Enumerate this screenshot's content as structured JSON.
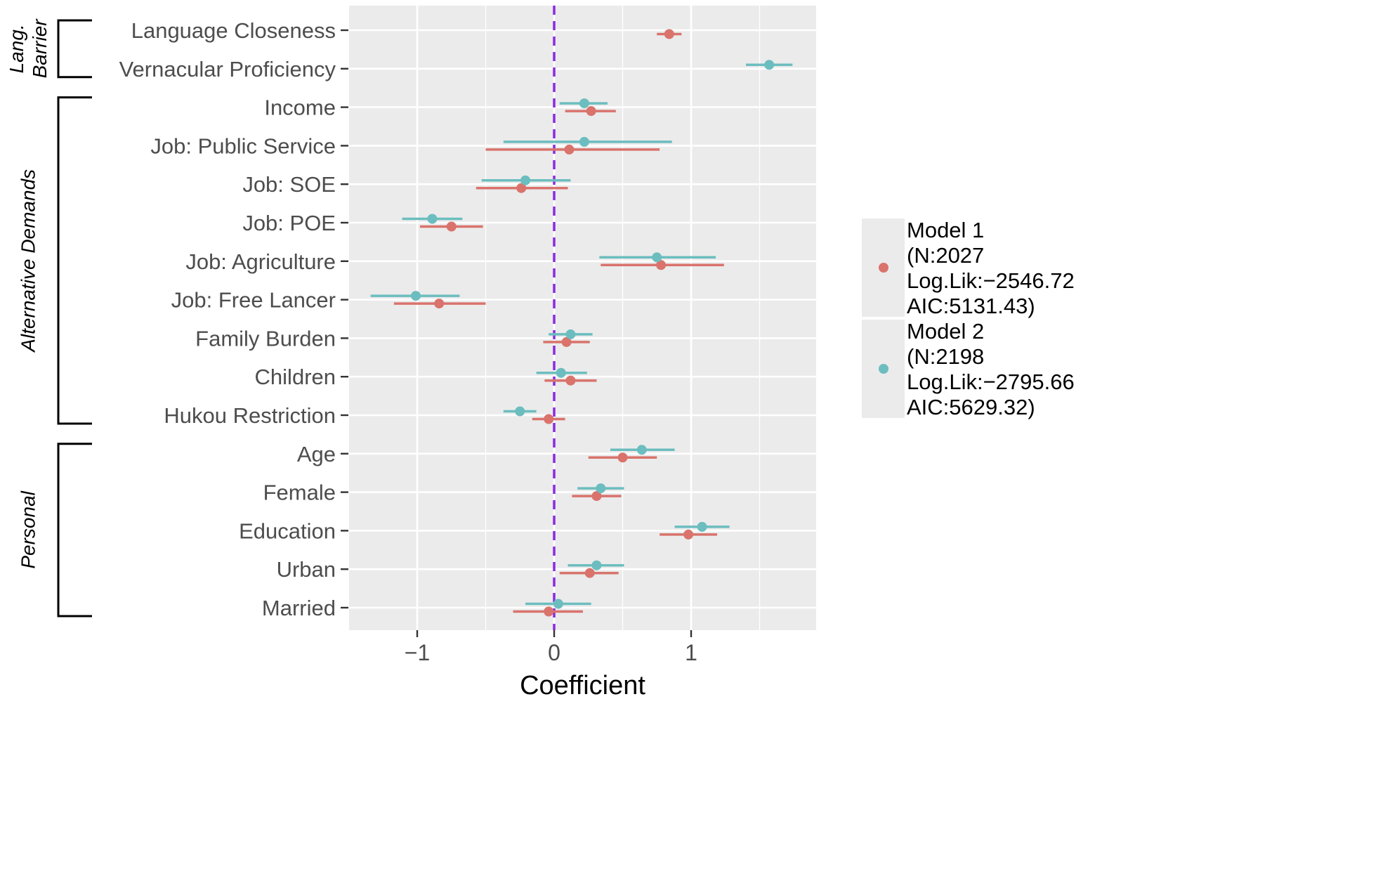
{
  "chart_data": {
    "type": "scatter",
    "subtype": "coefficient-plot-with-confidence-intervals",
    "title": "",
    "xlabel": "Coefficient",
    "ylabel": "",
    "xlim": [
      -1.5,
      1.9
    ],
    "x_ticks": [
      -1,
      0,
      1
    ],
    "x_tick_labels": [
      "−1",
      "0",
      "1"
    ],
    "reference_line": {
      "x": 0,
      "style": "dashed",
      "color": "#8a2be2"
    },
    "grid": true,
    "legend_position": "right",
    "colors": {
      "Model 1": "#d9736c",
      "Model 2": "#6cbdbf",
      "panel_background": "#ebebeb",
      "gridline": "#ffffff",
      "reference_line": "#8a2be2"
    },
    "categories": [
      "Language Closeness",
      "Vernacular Proficiency",
      "Income",
      "Job: Public Service",
      "Job: SOE",
      "Job: POE",
      "Job: Agriculture",
      "Job: Free Lancer",
      "Family Burden",
      "Children",
      "Hukou Restriction",
      "Age",
      "Female",
      "Education",
      "Urban",
      "Married"
    ],
    "groups": [
      {
        "label": "Lang.\nBarrier",
        "lines": [
          "Lang.",
          "Barrier"
        ],
        "from": 0,
        "to": 1
      },
      {
        "label": "Alternative Demands",
        "lines": [
          "Alternative Demands"
        ],
        "from": 2,
        "to": 10
      },
      {
        "label": "Personal",
        "lines": [
          "Personal"
        ],
        "from": 11,
        "to": 15
      }
    ],
    "series": [
      {
        "name": "Model 1",
        "legend_lines": [
          "Model 1",
          " (N:2027",
          " Log.Lik:−2546.72",
          " AIC:5131.43)"
        ],
        "estimates": [
          0.84,
          null,
          0.27,
          0.11,
          -0.24,
          -0.75,
          0.78,
          -0.84,
          0.09,
          0.12,
          -0.04,
          0.5,
          0.31,
          0.98,
          0.26,
          -0.04
        ],
        "lower": [
          0.75,
          null,
          0.08,
          -0.5,
          -0.57,
          -0.98,
          0.34,
          -1.17,
          -0.08,
          -0.07,
          -0.16,
          0.25,
          0.13,
          0.77,
          0.04,
          -0.3
        ],
        "upper": [
          0.93,
          null,
          0.45,
          0.77,
          0.1,
          -0.52,
          1.24,
          -0.5,
          0.26,
          0.31,
          0.08,
          0.75,
          0.49,
          1.19,
          0.47,
          0.21
        ]
      },
      {
        "name": "Model 2",
        "legend_lines": [
          "Model 2",
          " (N:2198",
          " Log.Lik:−2795.66",
          " AIC:5629.32)"
        ],
        "estimates": [
          null,
          1.57,
          0.22,
          0.22,
          -0.21,
          -0.89,
          0.75,
          -1.01,
          0.12,
          0.05,
          -0.25,
          0.64,
          0.34,
          1.08,
          0.31,
          0.03
        ],
        "lower": [
          null,
          1.4,
          0.04,
          -0.37,
          -0.53,
          -1.11,
          0.33,
          -1.34,
          -0.04,
          -0.13,
          -0.37,
          0.41,
          0.17,
          0.88,
          0.1,
          -0.21
        ],
        "upper": [
          null,
          1.74,
          0.39,
          0.86,
          0.12,
          -0.67,
          1.18,
          -0.69,
          0.28,
          0.24,
          -0.13,
          0.88,
          0.51,
          1.28,
          0.51,
          0.27
        ]
      }
    ]
  }
}
